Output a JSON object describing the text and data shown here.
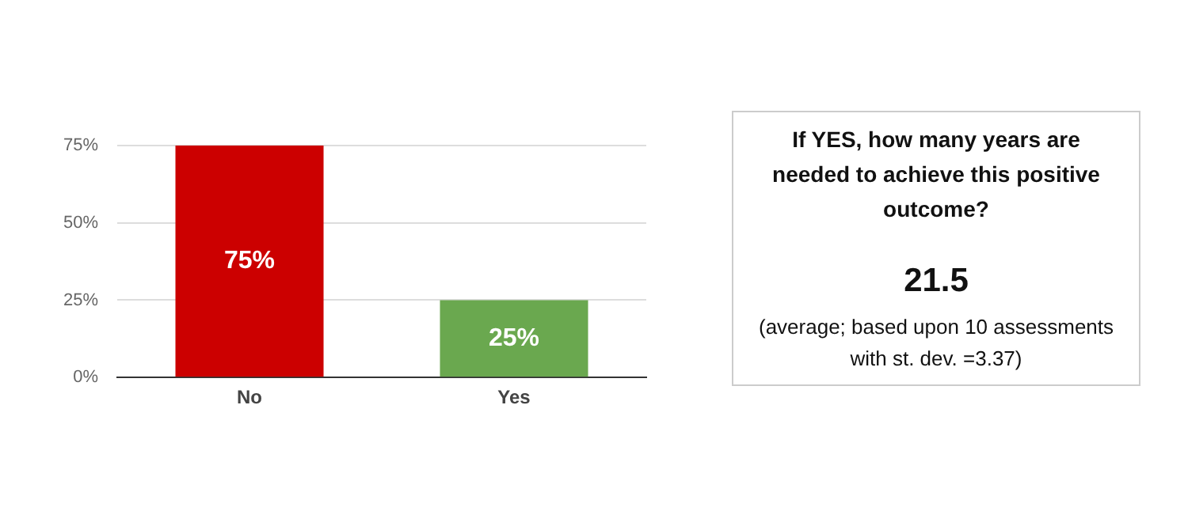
{
  "chart_data": [
    {
      "type": "bar",
      "categories": [
        "No",
        "Yes"
      ],
      "values": [
        75,
        25
      ],
      "colors": [
        "#cc0000",
        "#6aa84f"
      ],
      "ylim": [
        0,
        75
      ],
      "yticks": [
        {
          "value": 0,
          "label": "0%"
        },
        {
          "value": 25,
          "label": "25%"
        },
        {
          "value": 50,
          "label": "50%"
        },
        {
          "value": 75,
          "label": "75%"
        }
      ],
      "grid": "y",
      "value_labels": [
        "75%",
        "25%"
      ]
    },
    {
      "type": "other",
      "annotations": [
        "If YES, how many years are needed to achieve this positive outcome?",
        "21.5",
        "(average; based upon 10 assessments with st. dev. =3.37)"
      ]
    }
  ]
}
